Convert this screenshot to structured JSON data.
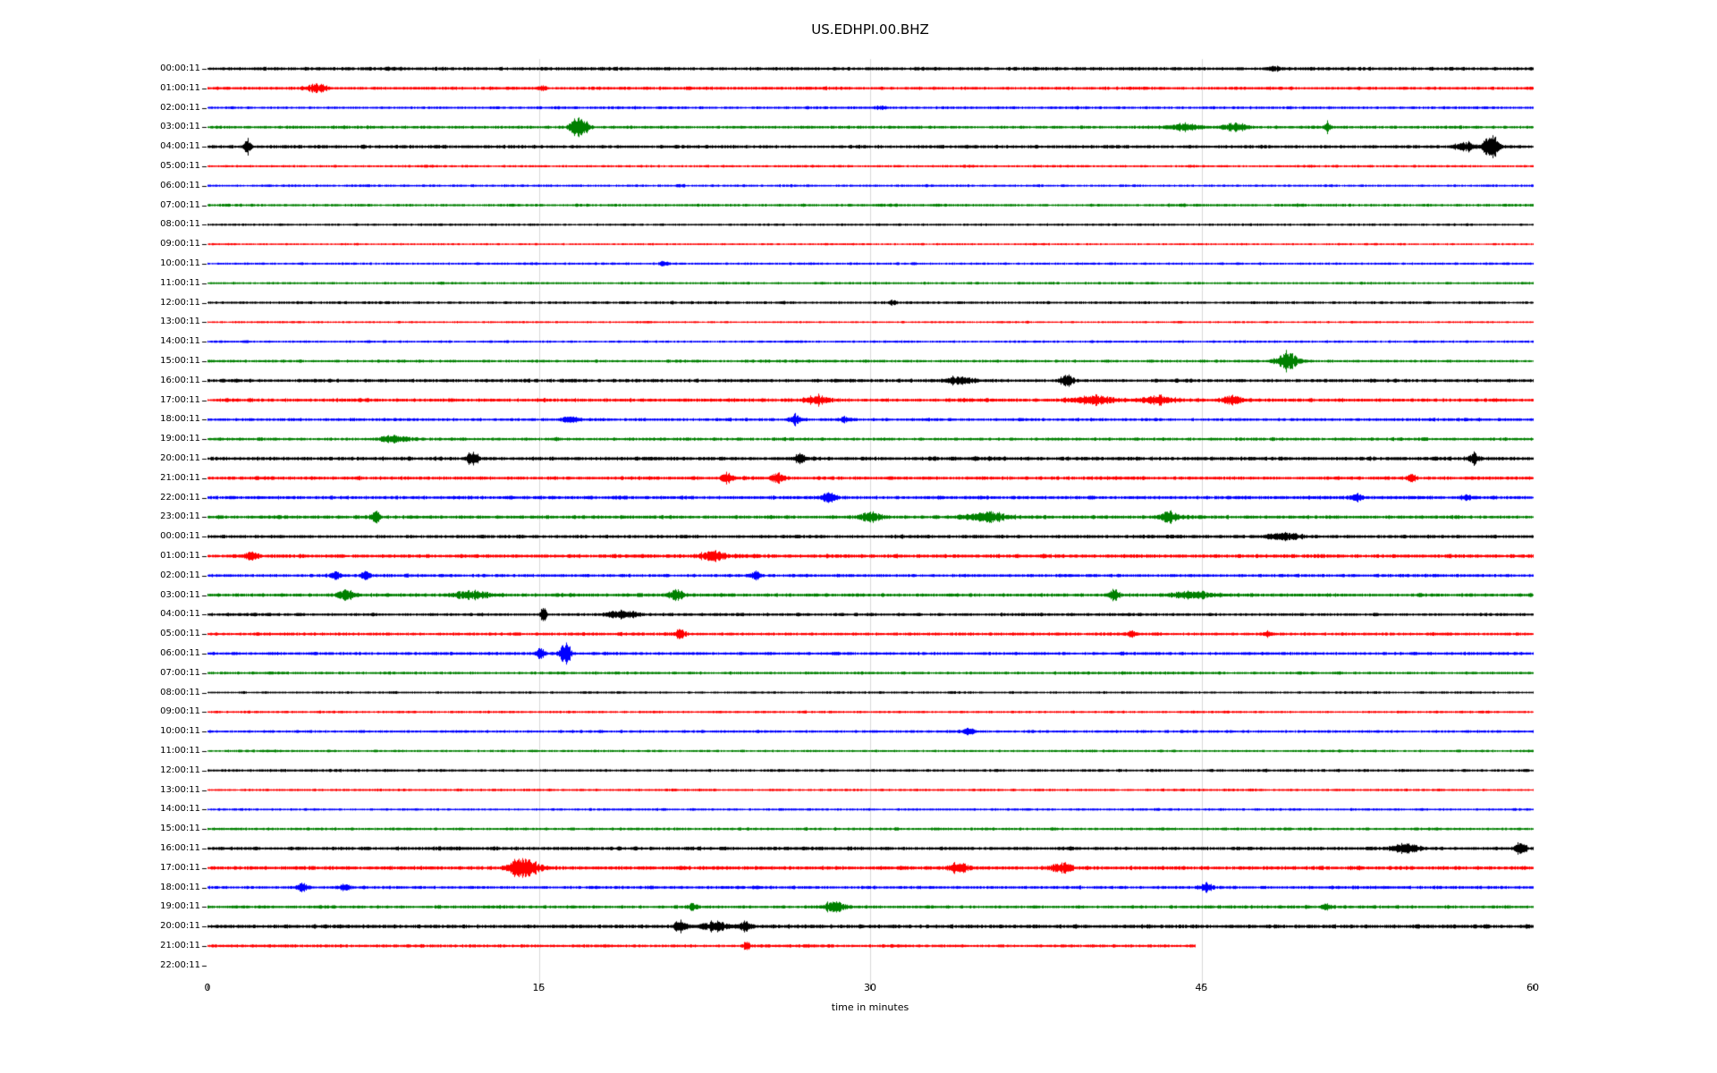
{
  "title": "US.EDHPI.00.BHZ",
  "chart_data": {
    "type": "line",
    "subtype": "seismogram-helicorder-dayplot",
    "title": "US.EDHPI.00.BHZ",
    "xlabel": "time in minutes",
    "xlim": [
      0,
      60
    ],
    "xticks": [
      0,
      15,
      30,
      45,
      60
    ],
    "grid": {
      "vertical_lines": [
        15,
        30,
        45
      ],
      "color": "#d9d9d9"
    },
    "row_duration_minutes": 60,
    "trace_colors": [
      "#000000",
      "#ff0000",
      "#0000ff",
      "#008000"
    ],
    "rows": [
      {
        "label": "00:00:11",
        "color": "#000000",
        "noise": 1.0,
        "events": [
          {
            "t": 48.3,
            "amp": 1.5,
            "dur": 0.6
          }
        ]
      },
      {
        "label": "01:00:11",
        "color": "#ff0000",
        "noise": 0.9,
        "events": [
          {
            "t": 4.9,
            "amp": 2.2,
            "dur": 0.9
          },
          {
            "t": 15.1,
            "amp": 1.5,
            "dur": 0.4
          }
        ]
      },
      {
        "label": "02:00:11",
        "color": "#0000ff",
        "noise": 0.8,
        "events": [
          {
            "t": 30.5,
            "amp": 1.2,
            "dur": 0.5
          }
        ]
      },
      {
        "label": "03:00:11",
        "color": "#008000",
        "noise": 0.9,
        "events": [
          {
            "t": 16.8,
            "amp": 7.5,
            "dur": 0.7
          },
          {
            "t": 44.2,
            "amp": 2.2,
            "dur": 1.5
          },
          {
            "t": 46.5,
            "amp": 2.0,
            "dur": 1.2
          },
          {
            "t": 50.7,
            "amp": 3.5,
            "dur": 0.25
          }
        ]
      },
      {
        "label": "04:00:11",
        "color": "#000000",
        "noise": 1.0,
        "events": [
          {
            "t": 1.8,
            "amp": 4.5,
            "dur": 0.3
          },
          {
            "t": 56.9,
            "amp": 2.5,
            "dur": 0.8
          },
          {
            "t": 58.1,
            "amp": 7.0,
            "dur": 0.7
          }
        ]
      },
      {
        "label": "05:00:11",
        "color": "#ff0000",
        "noise": 0.7,
        "events": []
      },
      {
        "label": "06:00:11",
        "color": "#0000ff",
        "noise": 0.7,
        "events": []
      },
      {
        "label": "07:00:11",
        "color": "#008000",
        "noise": 0.8,
        "events": []
      },
      {
        "label": "08:00:11",
        "color": "#000000",
        "noise": 0.7,
        "events": []
      },
      {
        "label": "09:00:11",
        "color": "#ff0000",
        "noise": 0.6,
        "events": []
      },
      {
        "label": "10:00:11",
        "color": "#0000ff",
        "noise": 0.7,
        "events": [
          {
            "t": 20.7,
            "amp": 1.5,
            "dur": 0.4
          }
        ]
      },
      {
        "label": "11:00:11",
        "color": "#008000",
        "noise": 0.7,
        "events": []
      },
      {
        "label": "12:00:11",
        "color": "#000000",
        "noise": 0.8,
        "events": [
          {
            "t": 31.0,
            "amp": 1.5,
            "dur": 0.4
          }
        ]
      },
      {
        "label": "13:00:11",
        "color": "#ff0000",
        "noise": 0.6,
        "events": []
      },
      {
        "label": "14:00:11",
        "color": "#0000ff",
        "noise": 0.7,
        "events": []
      },
      {
        "label": "15:00:11",
        "color": "#008000",
        "noise": 0.8,
        "events": [
          {
            "t": 48.9,
            "amp": 6.0,
            "dur": 1.0
          }
        ]
      },
      {
        "label": "16:00:11",
        "color": "#000000",
        "noise": 1.0,
        "events": [
          {
            "t": 34.1,
            "amp": 2.5,
            "dur": 1.2
          },
          {
            "t": 38.9,
            "amp": 3.5,
            "dur": 0.6
          }
        ]
      },
      {
        "label": "17:00:11",
        "color": "#ff0000",
        "noise": 1.0,
        "events": [
          {
            "t": 27.6,
            "amp": 2.8,
            "dur": 0.9
          },
          {
            "t": 40.0,
            "amp": 2.2,
            "dur": 2.0
          },
          {
            "t": 43.0,
            "amp": 2.0,
            "dur": 1.5
          },
          {
            "t": 46.4,
            "amp": 2.5,
            "dur": 0.9
          }
        ]
      },
      {
        "label": "18:00:11",
        "color": "#0000ff",
        "noise": 0.9,
        "events": [
          {
            "t": 16.4,
            "amp": 2.2,
            "dur": 0.7
          },
          {
            "t": 26.6,
            "amp": 2.8,
            "dur": 0.5
          },
          {
            "t": 28.8,
            "amp": 1.8,
            "dur": 0.5
          }
        ]
      },
      {
        "label": "19:00:11",
        "color": "#008000",
        "noise": 0.9,
        "events": [
          {
            "t": 8.4,
            "amp": 1.8,
            "dur": 1.2
          }
        ]
      },
      {
        "label": "20:00:11",
        "color": "#000000",
        "noise": 1.1,
        "events": [
          {
            "t": 12.0,
            "amp": 2.8,
            "dur": 0.5
          },
          {
            "t": 26.8,
            "amp": 2.6,
            "dur": 0.4
          },
          {
            "t": 57.3,
            "amp": 2.2,
            "dur": 0.5
          }
        ]
      },
      {
        "label": "21:00:11",
        "color": "#ff0000",
        "noise": 1.0,
        "events": [
          {
            "t": 23.5,
            "amp": 2.8,
            "dur": 0.5
          },
          {
            "t": 25.8,
            "amp": 2.6,
            "dur": 0.5
          },
          {
            "t": 54.5,
            "amp": 2.2,
            "dur": 0.4
          }
        ]
      },
      {
        "label": "22:00:11",
        "color": "#0000ff",
        "noise": 1.0,
        "events": [
          {
            "t": 28.1,
            "amp": 2.6,
            "dur": 0.6
          },
          {
            "t": 52.0,
            "amp": 2.2,
            "dur": 0.5
          },
          {
            "t": 57.0,
            "amp": 1.8,
            "dur": 0.4
          }
        ]
      },
      {
        "label": "23:00:11",
        "color": "#008000",
        "noise": 1.0,
        "events": [
          {
            "t": 7.6,
            "amp": 4.5,
            "dur": 0.35
          },
          {
            "t": 30.0,
            "amp": 2.2,
            "dur": 1.0
          },
          {
            "t": 35.2,
            "amp": 2.2,
            "dur": 1.8
          },
          {
            "t": 43.5,
            "amp": 2.6,
            "dur": 0.8
          }
        ]
      },
      {
        "label": "00:00:11",
        "color": "#000000",
        "noise": 1.0,
        "events": [
          {
            "t": 48.7,
            "amp": 2.5,
            "dur": 1.3
          }
        ]
      },
      {
        "label": "01:00:11",
        "color": "#ff0000",
        "noise": 1.1,
        "events": [
          {
            "t": 2.0,
            "amp": 2.0,
            "dur": 0.5
          },
          {
            "t": 22.8,
            "amp": 2.6,
            "dur": 1.0
          }
        ]
      },
      {
        "label": "02:00:11",
        "color": "#0000ff",
        "noise": 0.9,
        "events": [
          {
            "t": 5.8,
            "amp": 2.8,
            "dur": 0.5
          },
          {
            "t": 7.1,
            "amp": 1.8,
            "dur": 0.4
          },
          {
            "t": 24.8,
            "amp": 2.2,
            "dur": 0.5
          }
        ]
      },
      {
        "label": "03:00:11",
        "color": "#008000",
        "noise": 1.0,
        "events": [
          {
            "t": 6.3,
            "amp": 2.6,
            "dur": 0.7
          },
          {
            "t": 12.0,
            "amp": 2.0,
            "dur": 1.5
          },
          {
            "t": 21.2,
            "amp": 2.8,
            "dur": 0.7
          },
          {
            "t": 41.0,
            "amp": 2.8,
            "dur": 0.5
          },
          {
            "t": 44.5,
            "amp": 2.0,
            "dur": 1.8
          }
        ]
      },
      {
        "label": "04:00:11",
        "color": "#000000",
        "noise": 0.9,
        "events": [
          {
            "t": 15.2,
            "amp": 5.5,
            "dur": 0.25
          },
          {
            "t": 18.8,
            "amp": 2.2,
            "dur": 1.6
          }
        ]
      },
      {
        "label": "05:00:11",
        "color": "#ff0000",
        "noise": 0.9,
        "events": [
          {
            "t": 21.4,
            "amp": 2.8,
            "dur": 0.4
          },
          {
            "t": 41.8,
            "amp": 2.2,
            "dur": 0.5
          },
          {
            "t": 48.0,
            "amp": 1.8,
            "dur": 0.4
          }
        ]
      },
      {
        "label": "06:00:11",
        "color": "#0000ff",
        "noise": 0.9,
        "events": [
          {
            "t": 15.1,
            "amp": 3.5,
            "dur": 0.4
          },
          {
            "t": 16.2,
            "amp": 8.0,
            "dur": 0.45
          }
        ]
      },
      {
        "label": "07:00:11",
        "color": "#008000",
        "noise": 0.8,
        "events": []
      },
      {
        "label": "08:00:11",
        "color": "#000000",
        "noise": 0.7,
        "events": []
      },
      {
        "label": "09:00:11",
        "color": "#ff0000",
        "noise": 0.7,
        "events": []
      },
      {
        "label": "10:00:11",
        "color": "#0000ff",
        "noise": 0.8,
        "events": [
          {
            "t": 34.5,
            "amp": 1.5,
            "dur": 0.5
          }
        ]
      },
      {
        "label": "11:00:11",
        "color": "#008000",
        "noise": 0.7,
        "events": []
      },
      {
        "label": "12:00:11",
        "color": "#000000",
        "noise": 0.8,
        "events": []
      },
      {
        "label": "13:00:11",
        "color": "#ff0000",
        "noise": 0.7,
        "events": []
      },
      {
        "label": "14:00:11",
        "color": "#0000ff",
        "noise": 0.7,
        "events": []
      },
      {
        "label": "15:00:11",
        "color": "#008000",
        "noise": 0.8,
        "events": []
      },
      {
        "label": "16:00:11",
        "color": "#000000",
        "noise": 1.0,
        "events": [
          {
            "t": 54.2,
            "amp": 2.6,
            "dur": 1.2
          },
          {
            "t": 59.4,
            "amp": 2.8,
            "dur": 0.5
          }
        ]
      },
      {
        "label": "17:00:11",
        "color": "#ff0000",
        "noise": 1.1,
        "events": [
          {
            "t": 14.3,
            "amp": 5.5,
            "dur": 1.2
          },
          {
            "t": 34.0,
            "amp": 2.2,
            "dur": 0.9
          },
          {
            "t": 38.6,
            "amp": 2.2,
            "dur": 0.9
          }
        ]
      },
      {
        "label": "18:00:11",
        "color": "#0000ff",
        "noise": 0.9,
        "events": [
          {
            "t": 4.3,
            "amp": 2.8,
            "dur": 0.5
          },
          {
            "t": 6.2,
            "amp": 2.2,
            "dur": 0.5
          },
          {
            "t": 45.2,
            "amp": 2.2,
            "dur": 0.5
          }
        ]
      },
      {
        "label": "19:00:11",
        "color": "#008000",
        "noise": 0.9,
        "events": [
          {
            "t": 22.0,
            "amp": 1.8,
            "dur": 0.5
          },
          {
            "t": 28.4,
            "amp": 3.5,
            "dur": 0.9
          },
          {
            "t": 50.6,
            "amp": 2.2,
            "dur": 0.4
          }
        ]
      },
      {
        "label": "20:00:11",
        "color": "#000000",
        "noise": 1.1,
        "events": [
          {
            "t": 21.4,
            "amp": 2.6,
            "dur": 0.5
          },
          {
            "t": 23.0,
            "amp": 2.2,
            "dur": 1.3
          },
          {
            "t": 24.3,
            "amp": 2.4,
            "dur": 0.5
          }
        ]
      },
      {
        "label": "21:00:11",
        "color": "#ff0000",
        "noise": 0.9,
        "end": 44.7,
        "events": [
          {
            "t": 24.4,
            "amp": 2.8,
            "dur": 0.3
          }
        ]
      },
      {
        "label": "22:00:11",
        "color": "#0000ff",
        "noise": 0,
        "end": 0,
        "events": []
      }
    ]
  }
}
